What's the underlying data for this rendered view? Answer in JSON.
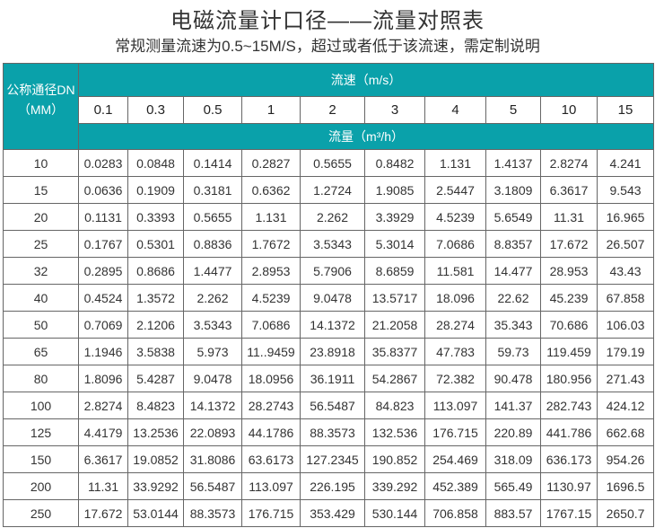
{
  "title": "电磁流量计口径——流量对照表",
  "subtitle": "常规测量流速为0.5~15M/S，超过或者低于该流速，需定制说明",
  "accent_color": "#0aa1aa",
  "table": {
    "dn_header_line1": "公称通径DN",
    "dn_header_line2": "（MM）",
    "speed_header": "流速（m/s）",
    "flow_header": "流量（m³/h）",
    "speeds": [
      "0.1",
      "0.3",
      "0.5",
      "1",
      "2",
      "3",
      "4",
      "5",
      "10",
      "15"
    ],
    "rows": [
      {
        "dn": "10",
        "values": [
          "0.0283",
          "0.0848",
          "0.1414",
          "0.2827",
          "0.5655",
          "0.8482",
          "1.131",
          "1.4137",
          "2.8274",
          "4.241"
        ]
      },
      {
        "dn": "15",
        "values": [
          "0.0636",
          "0.1909",
          "0.3181",
          "0.6362",
          "1.2724",
          "1.9085",
          "2.5447",
          "3.1809",
          "6.3617",
          "9.543"
        ]
      },
      {
        "dn": "20",
        "values": [
          "0.1131",
          "0.3393",
          "0.5655",
          "1.131",
          "2.262",
          "3.3929",
          "4.5239",
          "5.6549",
          "11.31",
          "16.965"
        ]
      },
      {
        "dn": "25",
        "values": [
          "0.1767",
          "0.5301",
          "0.8836",
          "1.7672",
          "3.5343",
          "5.3014",
          "7.0686",
          "8.8357",
          "17.672",
          "26.507"
        ]
      },
      {
        "dn": "32",
        "values": [
          "0.2895",
          "0.8686",
          "1.4477",
          "2.8953",
          "5.7906",
          "8.6859",
          "11.581",
          "14.477",
          "28.953",
          "43.43"
        ]
      },
      {
        "dn": "40",
        "values": [
          "0.4524",
          "1.3572",
          "2.262",
          "4.5239",
          "9.0478",
          "13.5717",
          "18.096",
          "22.62",
          "45.239",
          "67.858"
        ]
      },
      {
        "dn": "50",
        "values": [
          "0.7069",
          "2.1206",
          "3.5343",
          "7.0686",
          "14.1372",
          "21.2058",
          "28.274",
          "35.343",
          "70.686",
          "106.03"
        ]
      },
      {
        "dn": "65",
        "values": [
          "1.1946",
          "3.5838",
          "5.973",
          "11..9459",
          "23.8918",
          "35.8377",
          "47.783",
          "59.73",
          "119.459",
          "179.19"
        ]
      },
      {
        "dn": "80",
        "values": [
          "1.8096",
          "5.4287",
          "9.0478",
          "18.0956",
          "36.1911",
          "54.2867",
          "72.382",
          "90.478",
          "180.956",
          "271.43"
        ]
      },
      {
        "dn": "100",
        "values": [
          "2.8274",
          "8.4823",
          "14.1372",
          "28.2743",
          "56.5487",
          "84.823",
          "113.097",
          "141.37",
          "282.743",
          "424.12"
        ]
      },
      {
        "dn": "125",
        "values": [
          "4.4179",
          "13.2536",
          "22.0893",
          "44.1786",
          "88.3573",
          "132.536",
          "176.715",
          "220.89",
          "441.786",
          "662.68"
        ]
      },
      {
        "dn": "150",
        "values": [
          "6.3617",
          "19.0852",
          "31.8086",
          "63.6173",
          "127.2345",
          "190.852",
          "254.469",
          "318.09",
          "636.173",
          "954.26"
        ]
      },
      {
        "dn": "200",
        "values": [
          "11.31",
          "33.9292",
          "56.5487",
          "113.097",
          "226.195",
          "339.292",
          "452.389",
          "565.49",
          "1130.97",
          "1696.5"
        ]
      },
      {
        "dn": "250",
        "values": [
          "17.672",
          "53.0144",
          "88.3573",
          "176.715",
          "353.429",
          "530.144",
          "706.858",
          "883.57",
          "1767.15",
          "2650.7"
        ]
      }
    ]
  }
}
